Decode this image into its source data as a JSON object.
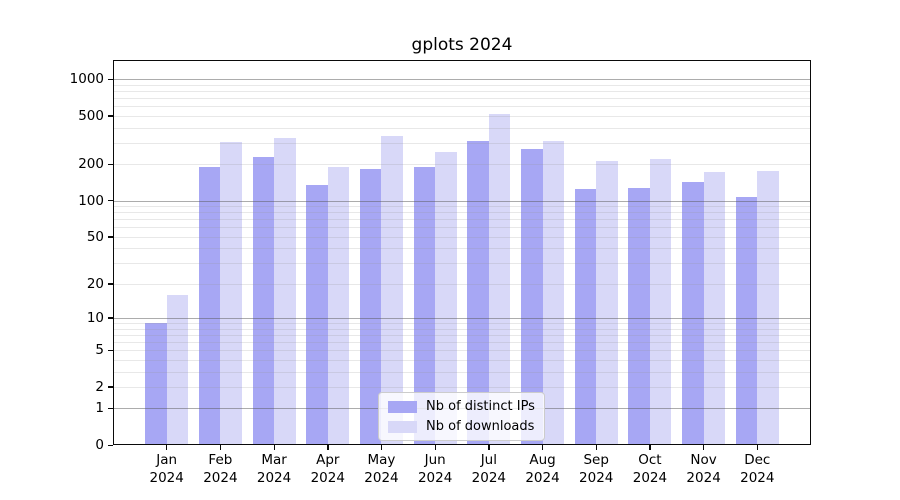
{
  "chart_data": {
    "type": "bar",
    "title": "gplots 2024",
    "scale": "log1p",
    "categories": [
      "Jan",
      "Feb",
      "Mar",
      "Apr",
      "May",
      "Jun",
      "Jul",
      "Aug",
      "Sep",
      "Oct",
      "Nov",
      "Dec"
    ],
    "year": "2024",
    "series": [
      {
        "name": "Nb of distinct IPs",
        "color": "#a7a7f4",
        "values": [
          9,
          188,
          227,
          134,
          183,
          188,
          312,
          268,
          125,
          128,
          142,
          108
        ]
      },
      {
        "name": "Nb of downloads",
        "color": "#d8d8f8",
        "values": [
          16,
          304,
          326,
          191,
          342,
          254,
          513,
          308,
          213,
          219,
          171,
          175
        ]
      }
    ],
    "yticks": [
      0,
      1,
      2,
      5,
      10,
      20,
      50,
      100,
      200,
      500,
      1000
    ],
    "ylim": [
      0,
      1434
    ],
    "grid": {
      "major": [
        1,
        10,
        100,
        1000
      ],
      "minor_decades": [
        1,
        10,
        100
      ],
      "drawn_over_bars": true
    },
    "legend_position": "lower-center",
    "colors": {
      "major_grid": "#adadad",
      "minor_grid": "#e8e8e8",
      "spine": "#0a0a0a",
      "background": "#ffffff"
    }
  }
}
